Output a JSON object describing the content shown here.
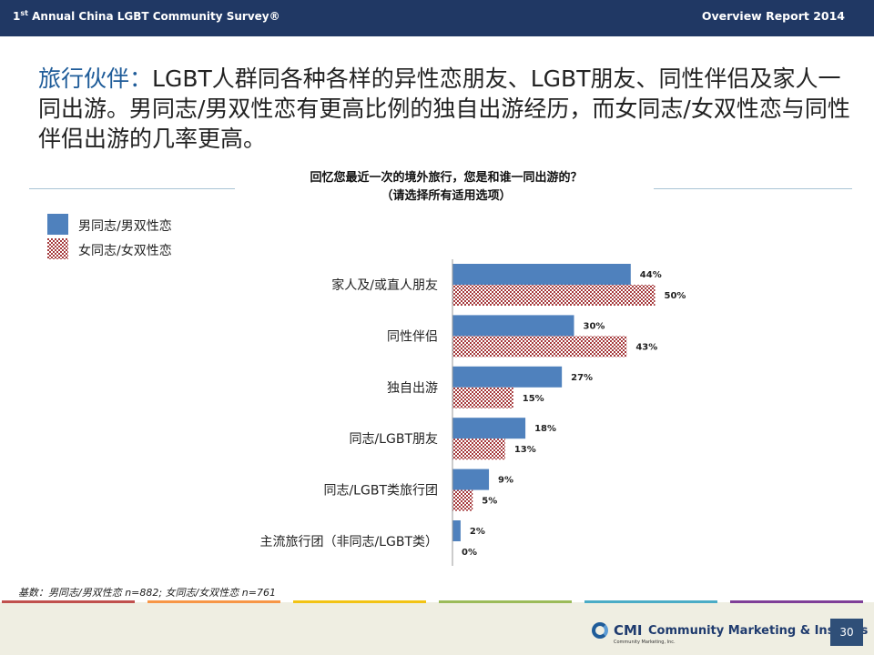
{
  "header": {
    "survey_prefix": "1",
    "survey_sup": "st",
    "survey_title": " Annual China LGBT Community Survey®",
    "report": "Overview Report 2014"
  },
  "headline": {
    "lead": "旅行伙伴：",
    "text": "LGBT人群同各种各样的异性恋朋友、LGBT朋友、同性伴侣及家人一同出游。男同志/男双性恋有更高比例的独自出游经历，而女同志/女双性恋与同性伴侣出游的几率更高。"
  },
  "chart_data": {
    "type": "bar",
    "orientation": "horizontal",
    "title": "回忆您最近一次的境外旅行，您是和谁一同出游的？",
    "subtitle": "（请选择所有适用选项）",
    "categories": [
      "家人及/或直人朋友",
      "同性伴侣",
      "独自出游",
      "同志/LGBT朋友",
      "同志/LGBT类旅行团",
      "主流旅行团（非同志/LGBT类）"
    ],
    "series": [
      {
        "name": "男同志/男双性恋",
        "values": [
          44,
          30,
          27,
          18,
          9,
          2
        ],
        "labels": [
          "44%",
          "30%",
          "27%",
          "18%",
          "9%",
          "2%"
        ],
        "color": "#4f81bd"
      },
      {
        "name": "女同志/女双性恋",
        "values": [
          50,
          43,
          15,
          13,
          5,
          0
        ],
        "labels": [
          "50%",
          "43%",
          "15%",
          "13%",
          "5%",
          "0%"
        ],
        "color": "#a53a3c"
      }
    ],
    "xlim": [
      0,
      100
    ],
    "grid": false,
    "legend": "top-left"
  },
  "footnote": "基数：男同志/男双性恋 n=882; 女同志/女双性恋 n=761",
  "footer": {
    "brand_short": "CMI",
    "brand_full": "Community Marketing & Insights",
    "brand_sub": "Community Marketing, Inc.",
    "page": "30",
    "accent_colors": [
      "#c0504d",
      "#f79646",
      "#f2c314",
      "#9bbb59",
      "#4bacc6",
      "#7f3f98"
    ]
  }
}
